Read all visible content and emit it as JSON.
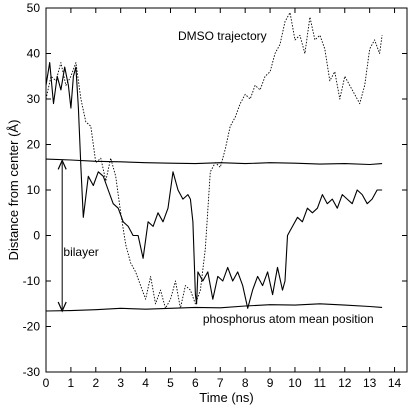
{
  "chart_data": {
    "type": "line",
    "xlabel": "Time (ns)",
    "ylabel": "Distance from center (Å)",
    "xlim": [
      0,
      14.5
    ],
    "ylim": [
      -30,
      50
    ],
    "xticks": [
      0,
      1,
      2,
      3,
      4,
      5,
      6,
      7,
      8,
      9,
      10,
      11,
      12,
      13,
      14
    ],
    "yticks": [
      -30,
      -20,
      -10,
      0,
      10,
      20,
      30,
      40,
      50
    ],
    "grid": false,
    "colors": {
      "line": "#000000",
      "axis": "#000000"
    },
    "annotations": [
      {
        "text": "DMSO trajectory",
        "x": 5.3,
        "y": 43
      },
      {
        "text": "bilayer",
        "x": 0.7,
        "y": -4.5
      },
      {
        "text": "phosphorus atom mean position",
        "x": 6.3,
        "y": -19.2
      }
    ],
    "arrow": {
      "x": 0.65,
      "y_from": -16.6,
      "y_to": 16.5
    },
    "series": [
      {
        "style": "solid",
        "x": [
          0.0,
          0.15,
          0.3,
          0.45,
          0.6,
          0.75,
          0.9,
          1.0,
          1.1,
          1.2,
          1.3,
          1.4,
          1.5,
          1.7,
          1.9,
          2.1,
          2.3,
          2.5,
          2.7,
          2.9,
          3.1,
          3.3,
          3.5,
          3.7,
          3.9,
          4.1,
          4.3,
          4.5,
          4.7,
          4.9,
          5.1,
          5.3,
          5.5,
          5.7,
          5.8,
          5.9,
          6.0,
          6.05,
          6.1,
          6.3,
          6.5,
          6.7,
          6.9,
          7.1,
          7.3,
          7.5,
          7.7,
          7.9,
          8.1,
          8.3,
          8.5,
          8.7,
          8.9,
          9.1,
          9.3,
          9.5,
          9.6,
          9.7,
          9.8,
          9.9,
          10.1,
          10.3,
          10.5,
          10.7,
          10.9,
          11.1,
          11.3,
          11.5,
          11.7,
          11.9,
          12.1,
          12.3,
          12.5,
          12.7,
          12.9,
          13.1,
          13.3,
          13.5
        ],
        "y": [
          33,
          38,
          29,
          35,
          32,
          37,
          33,
          28,
          35,
          37,
          28,
          15,
          4,
          13,
          11,
          14,
          13,
          10,
          7,
          6,
          3,
          2,
          0,
          0,
          -5,
          3,
          2,
          5,
          3,
          6,
          14,
          10,
          8,
          9,
          8,
          3,
          -13,
          -15,
          -8,
          -10,
          -8,
          -14,
          -9,
          -10,
          -7,
          -10,
          -8,
          -11,
          -16,
          -12,
          -9,
          -11,
          -8,
          -13,
          -7,
          -12,
          -10,
          0,
          1,
          2,
          4,
          3,
          6,
          5,
          6,
          9,
          7,
          8,
          6,
          9,
          8,
          7,
          10,
          9,
          7,
          8,
          10,
          10
        ]
      },
      {
        "style": "dotted",
        "x": [
          0.0,
          0.2,
          0.4,
          0.6,
          0.8,
          1.0,
          1.2,
          1.4,
          1.6,
          1.8,
          2.0,
          2.2,
          2.4,
          2.6,
          2.8,
          3.0,
          3.2,
          3.4,
          3.6,
          3.8,
          4.0,
          4.2,
          4.4,
          4.6,
          4.8,
          5.0,
          5.2,
          5.4,
          5.6,
          5.8,
          6.0,
          6.2,
          6.4,
          6.6,
          6.8,
          7.0,
          7.2,
          7.4,
          7.6,
          7.8,
          8.0,
          8.2,
          8.4,
          8.6,
          8.8,
          9.0,
          9.2,
          9.4,
          9.6,
          9.8,
          10.0,
          10.2,
          10.4,
          10.6,
          10.8,
          11.0,
          11.2,
          11.4,
          11.6,
          11.8,
          12.0,
          12.2,
          12.4,
          12.6,
          12.8,
          13.0,
          13.2,
          13.4,
          13.5
        ],
        "y": [
          30,
          35,
          34,
          38,
          33,
          35,
          38,
          30,
          25,
          24,
          16,
          17,
          12,
          17,
          13,
          5,
          -2,
          -6,
          -8,
          -11,
          -14,
          -9,
          -15,
          -12,
          -16,
          -14,
          -10,
          -16,
          -11,
          -12,
          -15,
          -12,
          -3,
          14,
          16,
          15,
          19,
          24,
          26,
          29,
          31,
          30,
          33,
          32,
          35,
          36,
          40,
          42,
          47,
          49,
          43,
          44,
          40,
          48,
          43,
          44,
          41,
          34,
          36,
          30,
          35,
          33,
          31,
          29,
          33,
          41,
          43,
          40,
          44
        ]
      },
      {
        "style": "solid",
        "x": [
          0.0,
          1.0,
          2.0,
          3.0,
          4.0,
          5.0,
          6.0,
          7.0,
          8.0,
          9.0,
          10.0,
          11.0,
          12.0,
          13.0,
          13.5
        ],
        "y": [
          16.8,
          16.6,
          16.3,
          16.2,
          16.0,
          15.9,
          15.8,
          16.0,
          15.8,
          16.0,
          15.9,
          15.7,
          15.8,
          15.6,
          15.8
        ]
      },
      {
        "style": "solid",
        "x": [
          0.0,
          1.0,
          2.0,
          3.0,
          4.0,
          5.0,
          6.0,
          7.0,
          8.0,
          9.0,
          10.0,
          11.0,
          12.0,
          13.0,
          13.5
        ],
        "y": [
          -16.6,
          -16.5,
          -16.3,
          -16.0,
          -16.2,
          -16.0,
          -15.8,
          -15.9,
          -15.5,
          -15.2,
          -15.3,
          -15.0,
          -15.3,
          -15.6,
          -15.8
        ]
      }
    ]
  }
}
